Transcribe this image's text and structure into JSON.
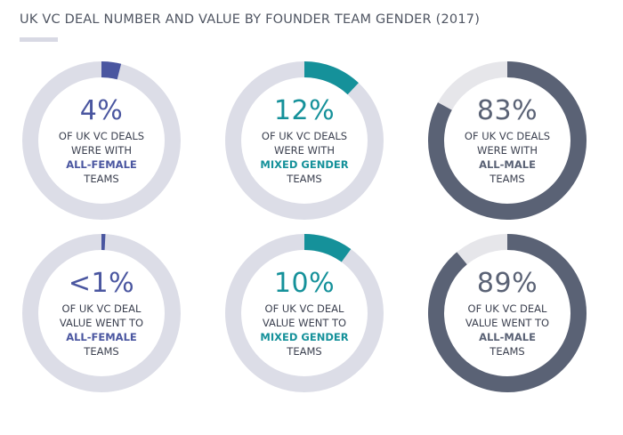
{
  "title": "UK VC DEAL NUMBER AND VALUE BY FOUNDER TEAM GENDER (2017)",
  "colors": {
    "female": "#4a56a0",
    "mixed": "#15919a",
    "male": "#5a6275",
    "track": "#dcdde7",
    "male_track": "#e6e6ea",
    "text": "#3c4150"
  },
  "chart_data": {
    "type": "pie",
    "title": "UK VC DEAL NUMBER AND VALUE BY FOUNDER TEAM GENDER (2017)",
    "rows": [
      {
        "metric": "deal number",
        "items": [
          {
            "pct_label": "4%",
            "value": 4,
            "line1": "OF UK VC DEALS",
            "line2": "WERE WITH",
            "highlight": "ALL-FEMALE",
            "line4": "TEAMS",
            "group": "female"
          },
          {
            "pct_label": "12%",
            "value": 12,
            "line1": "OF UK VC DEALS",
            "line2": "WERE WITH",
            "highlight": "MIXED GENDER",
            "line4": "TEAMS",
            "group": "mixed"
          },
          {
            "pct_label": "83%",
            "value": 83,
            "line1": "OF UK VC DEALS",
            "line2": "WERE WITH",
            "highlight": "ALL-MALE",
            "line4": "TEAMS",
            "group": "male"
          }
        ]
      },
      {
        "metric": "deal value",
        "items": [
          {
            "pct_label": "<1%",
            "value": 1,
            "line1": "OF UK VC DEAL",
            "line2": "VALUE WENT TO",
            "highlight": "ALL-FEMALE",
            "line4": "TEAMS",
            "group": "female"
          },
          {
            "pct_label": "10%",
            "value": 10,
            "line1": "OF UK VC DEAL",
            "line2": "VALUE WENT TO",
            "highlight": "MIXED GENDER",
            "line4": "TEAMS",
            "group": "mixed"
          },
          {
            "pct_label": "89%",
            "value": 89,
            "line1": "OF UK VC DEAL",
            "line2": "VALUE WENT TO",
            "highlight": "ALL-MALE",
            "line4": "TEAMS",
            "group": "male"
          }
        ]
      }
    ]
  }
}
